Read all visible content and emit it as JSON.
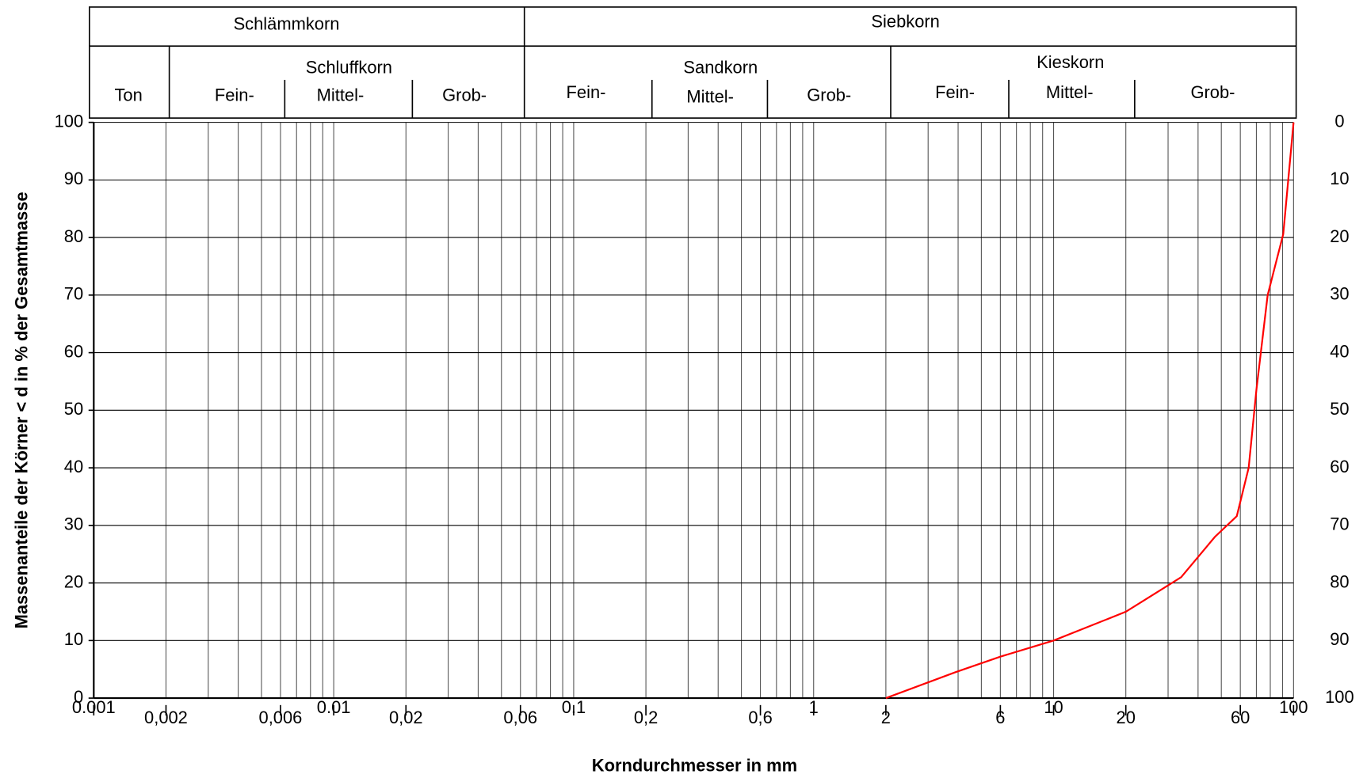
{
  "header": {
    "top": [
      "Schlämmkorn",
      "Siebkorn"
    ],
    "groups": [
      {
        "label": "Ton"
      },
      {
        "label": "Schluffkorn",
        "parts": [
          "Fein-",
          "Mittel-",
          "Grob-"
        ]
      },
      {
        "label": "Sandkorn",
        "parts": [
          "Fein-",
          "Mittel-",
          "Grob-"
        ]
      },
      {
        "label": "Kieskorn",
        "parts": [
          "Fein-",
          "Mittel-",
          "Grob-"
        ]
      }
    ]
  },
  "chart_data": {
    "type": "line",
    "x_label": "Korndurchmesser in mm",
    "y_label": "Massenanteile der Körner < d in % der Gesamtmasse",
    "xlog": true,
    "xlim": [
      0.001,
      100
    ],
    "ylim": [
      0,
      100
    ],
    "y2lim": [
      100,
      0
    ],
    "grid": true,
    "xticks": [
      0.001,
      {
        "value": 0.002,
        "label": "0,002"
      },
      {
        "value": 0.006,
        "label": "0,006"
      },
      0.01,
      {
        "value": 0.02,
        "label": "0,02"
      },
      {
        "value": 0.06,
        "label": "0,06"
      },
      0.1,
      {
        "value": 0.2,
        "label": "0,2"
      },
      {
        "value": 0.6,
        "label": "0,6"
      },
      1,
      2,
      6,
      10,
      20,
      60,
      100
    ],
    "xgrid": [
      0.002,
      0.003,
      0.004,
      0.005,
      0.006,
      0.007,
      0.008,
      0.009,
      0.01,
      0.02,
      0.03,
      0.04,
      0.05,
      0.06,
      0.07,
      0.08,
      0.09,
      0.1,
      0.2,
      0.3,
      0.4,
      0.5,
      0.6,
      0.7,
      0.8,
      0.9,
      1,
      2,
      3,
      4,
      5,
      6,
      7,
      8,
      9,
      10,
      20,
      30,
      40,
      50,
      60,
      70,
      80,
      90,
      100
    ],
    "yticks": [
      0,
      10,
      20,
      30,
      40,
      50,
      60,
      70,
      80,
      90,
      100
    ],
    "y2ticks": [
      0,
      10,
      20,
      30,
      40,
      50,
      60,
      70,
      80,
      90,
      100
    ],
    "x": [
      2,
      3.9,
      6,
      10,
      20,
      34,
      47,
      58,
      65,
      70,
      78,
      90.6,
      100
    ],
    "series": [
      {
        "color": "#ff0000",
        "values": [
          0,
          4.5,
          7.2,
          10,
          15,
          21,
          28,
          31.6,
          40,
          53.5,
          70,
          80.6,
          100
        ]
      }
    ]
  }
}
